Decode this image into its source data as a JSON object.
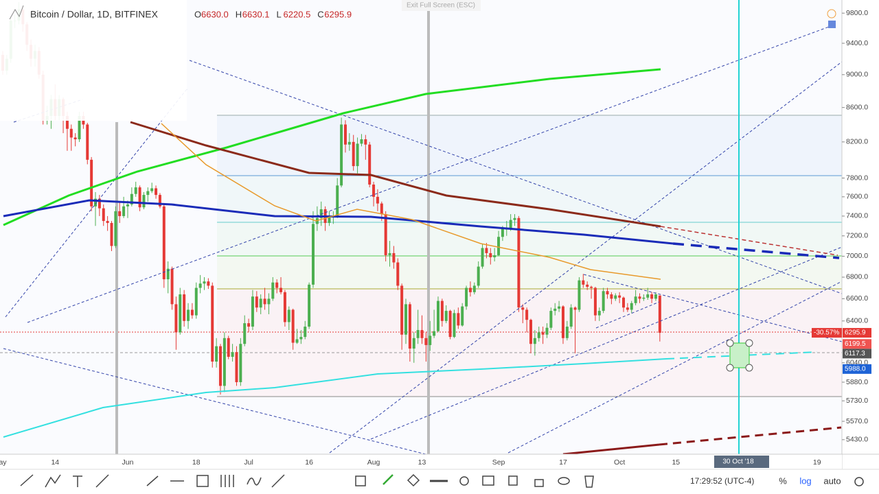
{
  "chart_data": {
    "type": "candlestick",
    "title": "Bitcoin / Dollar, 1D, BITFINEX",
    "ohlc_legend": [
      {
        "key": "O",
        "text": "6630.0"
      },
      {
        "key": "H",
        "text": "6630.1"
      },
      {
        "key": "L",
        "text": "6220.5"
      },
      {
        "key": "C",
        "text": "6295.9"
      }
    ],
    "categories": [
      "ay",
      null,
      null,
      null,
      null,
      null,
      null,
      null,
      null,
      null,
      null,
      null,
      null,
      "14",
      null,
      null,
      null,
      null,
      null,
      null,
      null,
      null,
      null,
      null,
      null,
      null,
      null,
      null,
      null,
      null,
      null,
      "Jun",
      null,
      null,
      null,
      null,
      null,
      null,
      null,
      null,
      null,
      null,
      null,
      null,
      null,
      null,
      null,
      null,
      "18",
      null,
      null,
      null,
      null,
      null,
      null,
      null,
      null,
      null,
      null,
      null,
      null,
      "Jul",
      null,
      null,
      null,
      null,
      null,
      null,
      null,
      null,
      null,
      null,
      null,
      null,
      null,
      null,
      "16",
      null,
      null,
      null,
      null,
      null,
      null,
      null,
      null,
      null,
      null,
      null,
      null,
      null,
      null,
      null,
      "Aug",
      null,
      null,
      null,
      null,
      null,
      null,
      null,
      null,
      null,
      null,
      null,
      "13",
      null,
      null,
      null,
      null,
      null,
      null,
      null,
      null,
      null,
      null,
      null,
      null,
      null,
      null,
      null,
      null,
      null,
      null,
      "Sep",
      null,
      null,
      null,
      null,
      null,
      null,
      null,
      null,
      null,
      null,
      null,
      null,
      null,
      null,
      null,
      "17",
      null,
      null,
      null,
      null,
      null,
      null,
      null,
      null,
      null,
      null,
      null,
      null,
      null,
      "Oct",
      null,
      null,
      null,
      null,
      null,
      null,
      null,
      null,
      null,
      null,
      null,
      null,
      null,
      "15",
      null,
      null,
      null,
      null,
      null,
      null,
      null,
      null,
      null,
      null,
      null,
      null,
      null,
      null,
      null,
      null,
      null,
      null,
      null,
      null,
      null,
      null,
      null,
      null,
      null,
      null,
      null,
      null,
      null,
      null,
      null,
      null,
      null,
      null,
      "19",
      null,
      null,
      null,
      null,
      null,
      null
    ],
    "candles": [
      [
        9250,
        9300,
        9000,
        9050
      ],
      [
        9050,
        9250,
        9000,
        9200
      ],
      [
        9200,
        9750,
        9150,
        9700
      ],
      [
        9690,
        9780,
        9600,
        9700
      ],
      [
        9700,
        9950,
        9650,
        9850
      ],
      [
        9850,
        9900,
        9550,
        9650
      ],
      [
        9650,
        9680,
        9300,
        9380
      ],
      [
        9380,
        9450,
        9100,
        9200
      ],
      [
        9200,
        9380,
        9100,
        9300
      ],
      [
        9300,
        9350,
        8950,
        9000
      ],
      [
        9000,
        9050,
        8400,
        8450
      ],
      [
        8450,
        8620,
        8400,
        8500
      ],
      [
        8500,
        8750,
        8350,
        8700
      ],
      [
        8700,
        8880,
        8450,
        8500
      ],
      [
        8500,
        8750,
        8450,
        8700
      ],
      [
        8700,
        8720,
        8300,
        8500
      ],
      [
        8500,
        8550,
        8100,
        8350
      ],
      [
        8350,
        8400,
        8100,
        8250
      ],
      [
        8250,
        8300,
        8150,
        8230
      ],
      [
        8230,
        8550,
        8200,
        8500
      ],
      [
        8500,
        8550,
        8350,
        8400
      ],
      [
        8400,
        8420,
        7950,
        8000
      ],
      [
        8000,
        8030,
        7450,
        7500
      ],
      [
        7500,
        7650,
        7300,
        7580
      ],
      [
        7580,
        7620,
        7400,
        7480
      ],
      [
        7480,
        7520,
        7300,
        7350
      ],
      [
        7350,
        7400,
        7250,
        7330
      ],
      [
        7330,
        7350,
        7050,
        7100
      ],
      [
        7100,
        7500,
        7080,
        7450
      ],
      [
        7450,
        7550,
        7330,
        7400
      ],
      [
        7400,
        7600,
        7380,
        7500
      ],
      [
        7500,
        7560,
        7380,
        7520
      ],
      [
        7520,
        7700,
        7500,
        7630
      ],
      [
        7630,
        7760,
        7600,
        7700
      ],
      [
        7700,
        7720,
        7450,
        7490
      ],
      [
        7490,
        7650,
        7470,
        7620
      ],
      [
        7620,
        7700,
        7550,
        7660
      ],
      [
        7660,
        7750,
        7640,
        7690
      ],
      [
        7690,
        7720,
        7580,
        7620
      ],
      [
        7620,
        7640,
        7480,
        7500
      ],
      [
        7500,
        7520,
        6700,
        6780
      ],
      [
        6780,
        6950,
        6650,
        6880
      ],
      [
        6880,
        6900,
        6500,
        6550
      ],
      [
        6550,
        6620,
        6150,
        6300
      ],
      [
        6300,
        6700,
        6280,
        6640
      ],
      [
        6640,
        6680,
        6350,
        6400
      ],
      [
        6400,
        6560,
        6330,
        6500
      ],
      [
        6500,
        6560,
        6420,
        6450
      ],
      [
        6450,
        6750,
        6420,
        6700
      ],
      [
        6700,
        6820,
        6650,
        6740
      ],
      [
        6740,
        6800,
        6680,
        6760
      ],
      [
        6760,
        6790,
        6690,
        6720
      ],
      [
        6720,
        6750,
        6000,
        6050
      ],
      [
        6050,
        6250,
        6000,
        6180
      ],
      [
        6180,
        6200,
        5780,
        5850
      ],
      [
        5850,
        6300,
        5800,
        6250
      ],
      [
        6250,
        6270,
        6070,
        6090
      ],
      [
        6090,
        6200,
        6050,
        6130
      ],
      [
        6130,
        6180,
        5850,
        5880
      ],
      [
        5880,
        6250,
        5850,
        6200
      ],
      [
        6200,
        6450,
        6180,
        6380
      ],
      [
        6380,
        6420,
        6300,
        6350
      ],
      [
        6350,
        6680,
        6320,
        6620
      ],
      [
        6620,
        6670,
        6480,
        6520
      ],
      [
        6520,
        6640,
        6460,
        6600
      ],
      [
        6600,
        6700,
        6500,
        6550
      ],
      [
        6550,
        6650,
        6460,
        6600
      ],
      [
        6600,
        6800,
        6580,
        6750
      ],
      [
        6750,
        6780,
        6650,
        6700
      ],
      [
        6700,
        6800,
        6640,
        6660
      ],
      [
        6660,
        6680,
        6350,
        6390
      ],
      [
        6390,
        6530,
        6320,
        6500
      ],
      [
        6500,
        6510,
        6150,
        6210
      ],
      [
        6210,
        6330,
        6200,
        6240
      ],
      [
        6240,
        6320,
        6200,
        6260
      ],
      [
        6260,
        6400,
        6240,
        6350
      ],
      [
        6350,
        6750,
        6330,
        6730
      ],
      [
        6730,
        7450,
        6700,
        7320
      ],
      [
        7320,
        7500,
        7250,
        7380
      ],
      [
        7380,
        7550,
        7300,
        7470
      ],
      [
        7470,
        7500,
        7250,
        7330
      ],
      [
        7330,
        7450,
        7300,
        7400
      ],
      [
        7400,
        7450,
        7320,
        7400
      ],
      [
        7400,
        7800,
        7380,
        7720
      ],
      [
        7720,
        8480,
        7700,
        8400
      ],
      [
        8400,
        8450,
        8080,
        8170
      ],
      [
        8170,
        8300,
        8100,
        8200
      ],
      [
        8200,
        8280,
        7880,
        7930
      ],
      [
        7930,
        8250,
        7850,
        8180
      ],
      [
        8180,
        8290,
        8150,
        8230
      ],
      [
        8230,
        8280,
        8000,
        8170
      ],
      [
        8170,
        8200,
        7700,
        7730
      ],
      [
        7730,
        7760,
        7500,
        7600
      ],
      [
        7600,
        7680,
        7450,
        7530
      ],
      [
        7530,
        7550,
        7350,
        7420
      ],
      [
        7420,
        7450,
        6950,
        7010
      ],
      [
        7010,
        7150,
        6900,
        7030
      ],
      [
        7030,
        7100,
        6880,
        6940
      ],
      [
        6940,
        6980,
        6680,
        6720
      ],
      [
        6720,
        6740,
        6150,
        6280
      ],
      [
        6280,
        6600,
        6200,
        6550
      ],
      [
        6550,
        6570,
        6050,
        6160
      ],
      [
        6160,
        6300,
        6040,
        6250
      ],
      [
        6250,
        6500,
        6200,
        6320
      ],
      [
        6320,
        6450,
        6200,
        6250
      ],
      [
        6250,
        6300,
        6050,
        6190
      ],
      [
        6190,
        6400,
        6140,
        6270
      ],
      [
        6270,
        6500,
        6250,
        6310
      ],
      [
        6310,
        6620,
        6300,
        6580
      ],
      [
        6580,
        6600,
        6350,
        6400
      ],
      [
        6400,
        6540,
        6380,
        6490
      ],
      [
        6490,
        6500,
        6240,
        6260
      ],
      [
        6260,
        6500,
        6250,
        6470
      ],
      [
        6470,
        6520,
        6330,
        6360
      ],
      [
        6360,
        6560,
        6350,
        6530
      ],
      [
        6530,
        6720,
        6500,
        6700
      ],
      [
        6700,
        6760,
        6620,
        6660
      ],
      [
        6660,
        6750,
        6640,
        6720
      ],
      [
        6720,
        6950,
        6700,
        6900
      ],
      [
        6900,
        7120,
        6880,
        7080
      ],
      [
        7080,
        7130,
        6980,
        7030
      ],
      [
        7030,
        7080,
        6920,
        6990
      ],
      [
        6990,
        7080,
        6950,
        7010
      ],
      [
        7010,
        7250,
        7000,
        7190
      ],
      [
        7190,
        7300,
        7150,
        7270
      ],
      [
        7270,
        7350,
        7200,
        7270
      ],
      [
        7270,
        7420,
        7250,
        7360
      ],
      [
        7360,
        7420,
        7300,
        7380
      ],
      [
        7380,
        7400,
        6480,
        6520
      ],
      [
        6520,
        6550,
        6380,
        6500
      ],
      [
        6500,
        6520,
        6300,
        6410
      ],
      [
        6410,
        6420,
        6120,
        6200
      ],
      [
        6200,
        6320,
        6100,
        6250
      ],
      [
        6250,
        6350,
        6220,
        6300
      ],
      [
        6300,
        6350,
        6200,
        6280
      ],
      [
        6280,
        6380,
        6250,
        6340
      ],
      [
        6340,
        6520,
        6320,
        6490
      ],
      [
        6490,
        6560,
        6450,
        6510
      ],
      [
        6510,
        6580,
        6480,
        6530
      ],
      [
        6530,
        6540,
        6200,
        6250
      ],
      [
        6250,
        6400,
        6230,
        6350
      ],
      [
        6350,
        6550,
        6330,
        6520
      ],
      [
        6520,
        6530,
        6120,
        6500
      ],
      [
        6500,
        6800,
        6480,
        6770
      ],
      [
        6770,
        6830,
        6700,
        6730
      ],
      [
        6730,
        6760,
        6680,
        6710
      ],
      [
        6710,
        6720,
        6600,
        6700
      ],
      [
        6700,
        6710,
        6400,
        6450
      ],
      [
        6450,
        6520,
        6400,
        6490
      ],
      [
        6490,
        6700,
        6470,
        6670
      ],
      [
        6670,
        6700,
        6600,
        6640
      ],
      [
        6640,
        6660,
        6550,
        6600
      ],
      [
        6600,
        6650,
        6580,
        6630
      ],
      [
        6630,
        6660,
        6560,
        6610
      ],
      [
        6610,
        6620,
        6480,
        6520
      ],
      [
        6520,
        6560,
        6480,
        6500
      ],
      [
        6500,
        6580,
        6470,
        6560
      ],
      [
        6560,
        6680,
        6540,
        6620
      ],
      [
        6620,
        6650,
        6560,
        6600
      ],
      [
        6600,
        6640,
        6580,
        6610
      ],
      [
        6610,
        6700,
        6590,
        6640
      ],
      [
        6640,
        6660,
        6560,
        6600
      ],
      [
        6600,
        6660,
        6580,
        6640
      ],
      [
        6630,
        6630.1,
        6220.5,
        6295.9
      ]
    ],
    "up_color": "#4caf50",
    "down_color": "#e53935",
    "log_scale": true,
    "ylim": [
      5322,
      9980
    ],
    "yticks": [
      {
        "value": 5430,
        "label": "5430.0"
      },
      {
        "value": 5570,
        "label": "5570.0"
      },
      {
        "value": 5730,
        "label": "5730.0"
      },
      {
        "value": 5880,
        "label": "5880.0"
      },
      {
        "value": 6040,
        "label": "6040.0"
      },
      {
        "value": 6400,
        "label": "6400.0"
      },
      {
        "value": 6600,
        "label": "6600.0"
      },
      {
        "value": 6800,
        "label": "6800.0"
      },
      {
        "value": 7000,
        "label": "7000.0"
      },
      {
        "value": 7200,
        "label": "7200.0"
      },
      {
        "value": 7400,
        "label": "7400.0"
      },
      {
        "value": 7600,
        "label": "7600.0"
      },
      {
        "value": 7800,
        "label": "7800.0"
      },
      {
        "value": 8200,
        "label": "8200.0"
      },
      {
        "value": 8600,
        "label": "8600.0"
      },
      {
        "value": 9000,
        "label": "9000.0"
      },
      {
        "value": 9400,
        "label": "9400.0"
      },
      {
        "value": 9800,
        "label": "9800.0"
      }
    ],
    "last_change": "-30.57%",
    "price_tags": [
      {
        "value": 6295.9,
        "color": "#e53935"
      },
      {
        "value": 6199.5,
        "color": "#ef5350"
      },
      {
        "value": 6117.3,
        "color": "#555555"
      },
      {
        "value": {
          "value": 5988,
          "label": "5988.0"
        },
        "color": "#1e63d6"
      }
    ],
    "crosshair_date": "30 Oct '18"
  },
  "toolbar": {
    "time": "17:29:52 (UTC-4)",
    "percent": "%",
    "log": "log",
    "auto": "auto"
  },
  "exit_fullscreen": "Exit Full Screen (ESC)"
}
